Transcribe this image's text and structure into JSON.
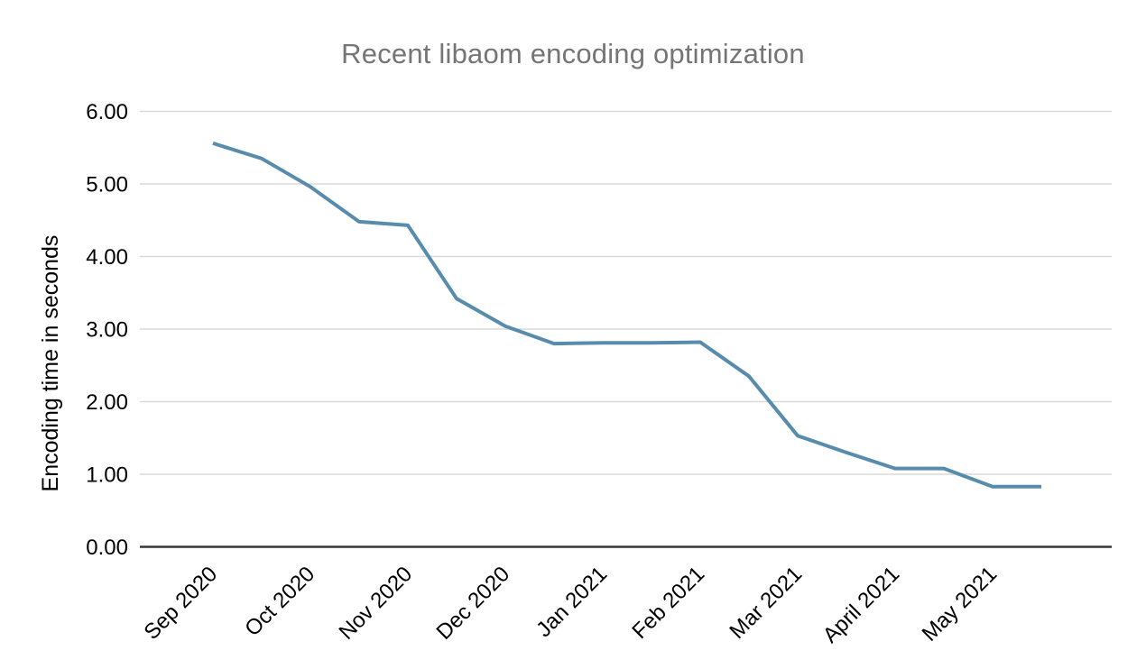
{
  "chart_data": {
    "type": "line",
    "title": "Recent libaom encoding optimization",
    "xlabel": "",
    "ylabel": "Encoding time in seconds",
    "categories": [
      "Sep 2020",
      "Oct 2020",
      "Nov 2020",
      "Dec 2020",
      "Jan 2021",
      "Feb 2021",
      "Mar 2021",
      "April 2021",
      "May 2021"
    ],
    "series": [
      {
        "name": "encoding_time_seconds",
        "x_month_offset": [
          0,
          0.5,
          1,
          1.5,
          2,
          2.5,
          3,
          3.5,
          4,
          4.5,
          5,
          5.5,
          6,
          6.5,
          7,
          7.5,
          8,
          8.5
        ],
        "values": [
          5.56,
          5.35,
          4.96,
          4.48,
          4.43,
          3.42,
          3.04,
          2.8,
          2.81,
          2.81,
          2.82,
          2.35,
          1.53,
          1.3,
          1.08,
          1.08,
          0.83,
          0.83
        ]
      }
    ],
    "ylim": [
      0,
      6
    ],
    "y_tick_values": [
      0,
      1,
      2,
      3,
      4,
      5,
      6
    ],
    "y_ticks": [
      "0.00",
      "1.00",
      "2.00",
      "3.00",
      "4.00",
      "5.00",
      "6.00"
    ],
    "grid": "horizontal",
    "legend_position": "none",
    "x_labels_rotated": true,
    "colors": {
      "line": "#588cac",
      "grid": "#d9d9d9",
      "axis": "#373737",
      "title": "#757575",
      "tick_text": "#000000",
      "background": "#ffffff"
    }
  }
}
